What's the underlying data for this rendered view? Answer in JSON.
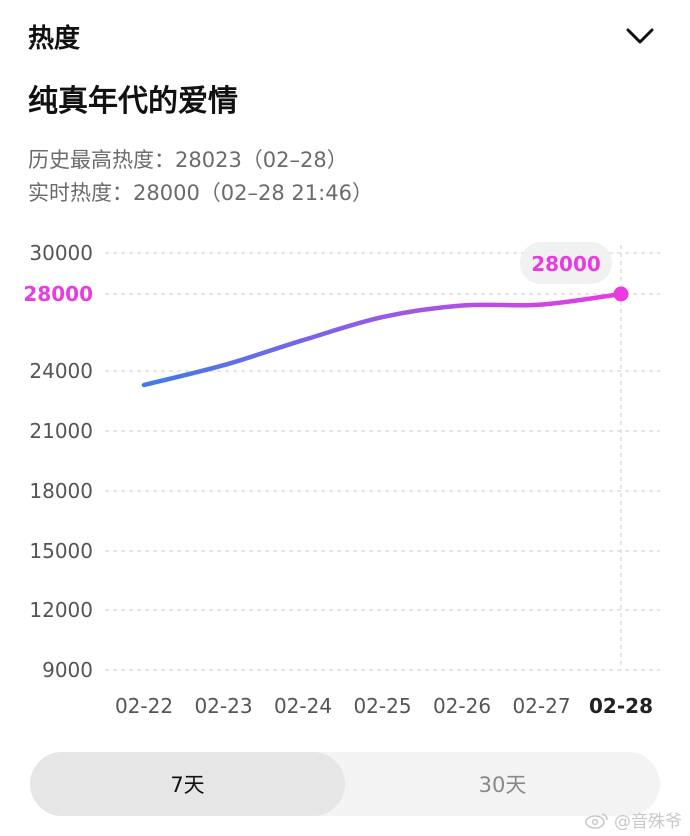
{
  "header": {
    "title": "热度"
  },
  "topic": {
    "title": "纯真年代的爱情"
  },
  "stats": {
    "historical_peak": "历史最高热度：28023（02–28）",
    "realtime": "实时热度：28000（02–28 21:46）"
  },
  "chart_data": {
    "type": "line",
    "categories": [
      "02-22",
      "02-23",
      "02-24",
      "02-25",
      "02-26",
      "02-27",
      "02-28"
    ],
    "series": [
      {
        "values": [
          23300,
          24300,
          25600,
          26800,
          27400,
          27450,
          28000
        ]
      }
    ],
    "y_ticks": [
      30000,
      28000,
      24000,
      21000,
      18000,
      15000,
      12000,
      9000
    ],
    "y_tick_labels": [
      "30000",
      "28000",
      "24000",
      "21000",
      "18000",
      "15000",
      "12000",
      "9000"
    ],
    "highlight_tick": "28000",
    "current_value_label": "28000",
    "ylim": [
      9000,
      30000
    ],
    "grid": true,
    "colors": {
      "start": "#3f7be8",
      "end": "#e83ce0",
      "grid": "#d6d6d6"
    }
  },
  "range_tabs": [
    {
      "label": "7天",
      "active": true
    },
    {
      "label": "30天",
      "active": false
    }
  ],
  "watermark": {
    "text": "@音殊爷"
  },
  "icons": {
    "collapse": "chevron-down-icon",
    "watermark_logo": "weibo-icon"
  }
}
